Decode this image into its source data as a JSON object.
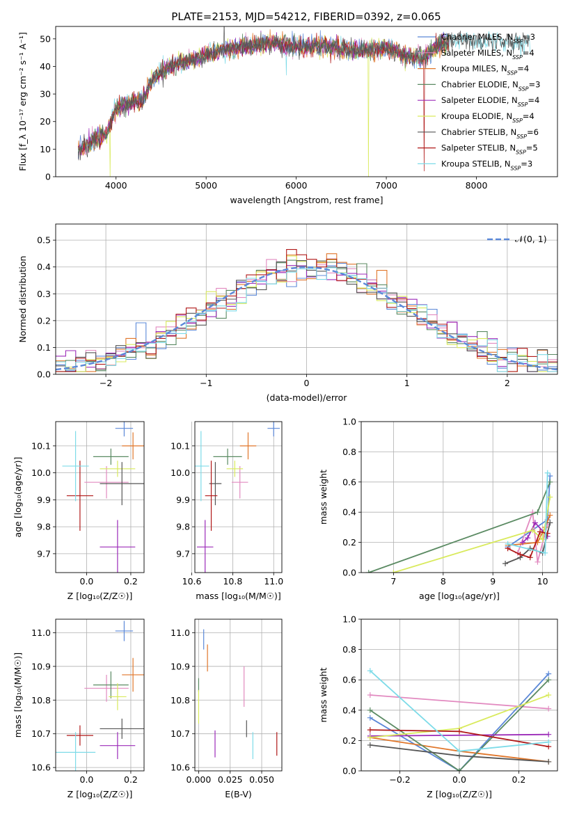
{
  "figure": {
    "title": "PLATE=2153, MJD=54212, FIBERID=0392, z=0.065"
  },
  "colors": {
    "Chabrier MILES": "#5b88d8",
    "Salpeter MILES": "#e28ac0",
    "Kroupa MILES": "#e0762a",
    "Chabrier ELODIE": "#5a8a62",
    "Salpeter ELODIE": "#9b2ab8",
    "Kroupa ELODIE": "#d9ea5c",
    "Chabrier STELIB": "#555555",
    "Salpeter STELIB": "#b01818",
    "Kroupa STELIB": "#7ddbe8",
    "normal": "#5b88d8"
  },
  "chart_data": [
    {
      "id": "spectrum",
      "type": "line",
      "xlabel": "wavelength [Angstrom, rest frame]",
      "ylabel": "Flux [f_λ 10⁻¹⁷ erg cm⁻² s⁻¹ A⁻¹]",
      "xlim": [
        3330,
        8900
      ],
      "ylim": [
        0,
        54.5
      ],
      "xticks": [
        4000,
        5000,
        6000,
        7000,
        8000
      ],
      "yticks": [
        0,
        10,
        20,
        30,
        40,
        50
      ],
      "grid": false,
      "legend": "right",
      "continuum": {
        "x": [
          3580,
          3700,
          3800,
          3900,
          4000,
          4100,
          4200,
          4300,
          4400,
          4500,
          4600,
          4800,
          5000,
          5200,
          5400,
          5600,
          5800,
          6000,
          6200,
          6400,
          6600,
          6800,
          7000,
          7200,
          7400,
          7600,
          7800,
          8000,
          8200,
          8400,
          8600
        ],
        "y": [
          10,
          12,
          14,
          16,
          25,
          26,
          27,
          28,
          35,
          38,
          40,
          42,
          44,
          46,
          47,
          48,
          48.5,
          47,
          47.5,
          47,
          46,
          46,
          47,
          44,
          43,
          48,
          50,
          49,
          49,
          49,
          49
        ]
      },
      "dips": [
        {
          "x": 3934,
          "depth": 18,
          "series": "Kroupa ELODIE"
        },
        {
          "x": 5890,
          "depth": 10,
          "series": "Kroupa STELIB"
        },
        {
          "x": 6800,
          "depth": 46,
          "series": "Kroupa ELODIE"
        },
        {
          "x": 7420,
          "depth": 43,
          "series": "Salpeter STELIB"
        }
      ],
      "spikes": [
        {
          "x": 5200,
          "height": 11
        }
      ],
      "series": [
        {
          "name": "Chabrier MILES",
          "n_ssp": "3"
        },
        {
          "name": "Salpeter MILES",
          "n_ssp": "4"
        },
        {
          "name": "Kroupa MILES",
          "n_ssp": "4"
        },
        {
          "name": "Chabrier ELODIE",
          "n_ssp": "3"
        },
        {
          "name": "Salpeter ELODIE",
          "n_ssp": "4"
        },
        {
          "name": "Kroupa ELODIE",
          "n_ssp": "4"
        },
        {
          "name": "Chabrier STELIB",
          "n_ssp": "6"
        },
        {
          "name": "Salpeter STELIB",
          "n_ssp": "5"
        },
        {
          "name": "Kroupa STELIB",
          "n_ssp": "3"
        }
      ]
    },
    {
      "id": "residuals",
      "type": "histogram",
      "xlabel": "(data-model)/error",
      "ylabel": "Normed distribution",
      "xlim": [
        -2.5,
        2.5
      ],
      "ylim": [
        0,
        0.56
      ],
      "xticks": [
        -2,
        -1,
        0,
        1,
        2
      ],
      "yticks": [
        0.0,
        0.1,
        0.2,
        0.3,
        0.4,
        0.5
      ],
      "grid": true,
      "legend": "top-right",
      "normal_label": "𝒩(0, 1)",
      "bin_width": 0.1
    },
    {
      "id": "z_age",
      "type": "errorbar",
      "xlabel": "Z [log₁₀(Z/Z☉)]",
      "ylabel": "age [log₁₀(age/yr)]",
      "xlim": [
        -0.14,
        0.26
      ],
      "ylim": [
        9.63,
        10.19
      ],
      "xticks": [
        0.0,
        0.2
      ],
      "yticks": [
        9.7,
        9.8,
        9.9,
        10.0,
        10.1
      ],
      "grid": true,
      "points": [
        {
          "series": "Chabrier MILES",
          "x": 0.17,
          "xerr": 0.04,
          "y": 10.165,
          "yerr": 0.03
        },
        {
          "series": "Salpeter MILES",
          "x": 0.09,
          "xerr": 0.1,
          "y": 9.965,
          "yerr": 0.06
        },
        {
          "series": "Kroupa MILES",
          "x": 0.21,
          "xerr": 0.05,
          "y": 10.1,
          "yerr": 0.05
        },
        {
          "series": "Chabrier ELODIE",
          "x": 0.11,
          "xerr": 0.08,
          "y": 10.06,
          "yerr": 0.03
        },
        {
          "series": "Salpeter ELODIE",
          "x": 0.14,
          "xerr": 0.08,
          "y": 9.725,
          "yerr": 0.1
        },
        {
          "series": "Kroupa ELODIE",
          "x": 0.14,
          "xerr": 0.08,
          "y": 10.015,
          "yerr": 0.03
        },
        {
          "series": "Chabrier STELIB",
          "x": 0.16,
          "xerr": 0.1,
          "y": 9.96,
          "yerr": 0.08
        },
        {
          "series": "Salpeter STELIB",
          "x": -0.03,
          "xerr": 0.06,
          "y": 9.915,
          "yerr": 0.13
        },
        {
          "series": "Kroupa STELIB",
          "x": -0.05,
          "xerr": 0.06,
          "y": 10.025,
          "yerr": 0.13
        }
      ]
    },
    {
      "id": "mass_age",
      "type": "errorbar",
      "xlabel": "mass [log₁₀(M/M☉)]",
      "ylabel": "",
      "xlim": [
        10.615,
        11.04
      ],
      "ylim": [
        9.63,
        10.19
      ],
      "xticks": [
        10.6,
        10.8,
        11.0
      ],
      "yticks": [
        9.7,
        9.8,
        9.9,
        10.0,
        10.1
      ],
      "grid": true,
      "points": [
        {
          "series": "Chabrier MILES",
          "x": 11.0,
          "xerr": 0.03,
          "y": 10.165,
          "yerr": 0.03
        },
        {
          "series": "Salpeter MILES",
          "x": 10.835,
          "xerr": 0.04,
          "y": 9.965,
          "yerr": 0.06
        },
        {
          "series": "Kroupa MILES",
          "x": 10.875,
          "xerr": 0.04,
          "y": 10.1,
          "yerr": 0.05
        },
        {
          "series": "Chabrier ELODIE",
          "x": 10.775,
          "xerr": 0.07,
          "y": 10.06,
          "yerr": 0.03
        },
        {
          "series": "Salpeter ELODIE",
          "x": 10.665,
          "xerr": 0.04,
          "y": 9.725,
          "yerr": 0.1
        },
        {
          "series": "Kroupa ELODIE",
          "x": 10.81,
          "xerr": 0.04,
          "y": 10.015,
          "yerr": 0.03
        },
        {
          "series": "Chabrier STELIB",
          "x": 10.715,
          "xerr": 0.03,
          "y": 9.96,
          "yerr": 0.08
        },
        {
          "series": "Salpeter STELIB",
          "x": 10.695,
          "xerr": 0.03,
          "y": 9.915,
          "yerr": 0.13
        },
        {
          "series": "Kroupa STELIB",
          "x": 10.645,
          "xerr": 0.04,
          "y": 10.025,
          "yerr": 0.13
        }
      ]
    },
    {
      "id": "age_weight",
      "type": "line",
      "xlabel": "age [log₁₀(age/yr)]",
      "ylabel": "mass weight",
      "xlim": [
        6.35,
        10.3
      ],
      "ylim": [
        0,
        1.0
      ],
      "xticks": [
        7,
        8,
        9,
        10
      ],
      "yticks": [
        0.0,
        0.2,
        0.4,
        0.6,
        0.8,
        1.0
      ],
      "grid": true,
      "series": [
        {
          "name": "Chabrier MILES",
          "x": [
            9.3,
            10.1,
            10.15
          ],
          "y": [
            0.17,
            0.35,
            0.64
          ]
        },
        {
          "name": "Salpeter MILES",
          "x": [
            9.5,
            9.8,
            9.9,
            10.1
          ],
          "y": [
            0.13,
            0.4,
            0.07,
            0.32
          ]
        },
        {
          "name": "Kroupa MILES",
          "x": [
            9.3,
            9.9,
            10.05,
            10.15
          ],
          "y": [
            0.18,
            0.2,
            0.3,
            0.38
          ]
        },
        {
          "name": "Chabrier ELODIE",
          "x": [
            6.5,
            9.9,
            10.15
          ],
          "y": [
            0.0,
            0.4,
            0.6
          ]
        },
        {
          "name": "Salpeter ELODIE",
          "x": [
            9.6,
            9.7,
            9.85,
            10.1
          ],
          "y": [
            0.2,
            0.23,
            0.33,
            0.24
          ]
        },
        {
          "name": "Kroupa ELODIE",
          "x": [
            7.0,
            9.8,
            10.0,
            10.15
          ],
          "y": [
            0.0,
            0.28,
            0.22,
            0.5
          ]
        },
        {
          "name": "Chabrier STELIB",
          "x": [
            9.25,
            9.55,
            9.75,
            10.0,
            10.15
          ],
          "y": [
            0.06,
            0.1,
            0.16,
            0.13,
            0.33
          ]
        },
        {
          "name": "Salpeter STELIB",
          "x": [
            9.3,
            9.55,
            9.75,
            9.95,
            10.1
          ],
          "y": [
            0.16,
            0.12,
            0.1,
            0.27,
            0.26
          ]
        },
        {
          "name": "Kroupa STELIB",
          "x": [
            9.3,
            10.05,
            10.1
          ],
          "y": [
            0.19,
            0.13,
            0.66
          ]
        }
      ]
    },
    {
      "id": "z_mass",
      "type": "errorbar",
      "xlabel": "Z [log₁₀(Z/Z☉)]",
      "ylabel": "mass [log₁₀(M/M☉)]",
      "xlim": [
        -0.14,
        0.26
      ],
      "ylim": [
        10.59,
        11.04
      ],
      "xticks": [
        0.0,
        0.2
      ],
      "yticks": [
        10.6,
        10.7,
        10.8,
        10.9,
        11.0
      ],
      "grid": true,
      "points": [
        {
          "series": "Chabrier MILES",
          "x": 0.17,
          "xerr": 0.04,
          "y": 11.005,
          "yerr": 0.03
        },
        {
          "series": "Salpeter MILES",
          "x": 0.09,
          "xerr": 0.1,
          "y": 10.835,
          "yerr": 0.04
        },
        {
          "series": "Kroupa MILES",
          "x": 0.21,
          "xerr": 0.05,
          "y": 10.875,
          "yerr": 0.05
        },
        {
          "series": "Chabrier ELODIE",
          "x": 0.11,
          "xerr": 0.08,
          "y": 10.845,
          "yerr": 0.04
        },
        {
          "series": "Salpeter ELODIE",
          "x": 0.14,
          "xerr": 0.08,
          "y": 10.665,
          "yerr": 0.04
        },
        {
          "series": "Kroupa ELODIE",
          "x": 0.14,
          "xerr": 0.04,
          "y": 10.81,
          "yerr": 0.04
        },
        {
          "series": "Chabrier STELIB",
          "x": 0.16,
          "xerr": 0.1,
          "y": 10.715,
          "yerr": 0.03
        },
        {
          "series": "Salpeter STELIB",
          "x": -0.03,
          "xerr": 0.06,
          "y": 10.695,
          "yerr": 0.03
        },
        {
          "series": "Kroupa STELIB",
          "x": -0.05,
          "xerr": 0.09,
          "y": 10.645,
          "yerr": 0.06
        }
      ]
    },
    {
      "id": "ebv_mass",
      "type": "errorbar",
      "xlabel": "E(B-V)",
      "ylabel": "",
      "xlim": [
        -0.003,
        0.066
      ],
      "ylim": [
        10.59,
        11.04
      ],
      "xticks": [
        0.0,
        0.025,
        0.05
      ],
      "yticks": [
        10.6,
        10.7,
        10.8,
        10.9,
        11.0
      ],
      "grid": true,
      "points": [
        {
          "series": "Chabrier MILES",
          "x": 0.004,
          "y": 10.98,
          "yerr": 0.03
        },
        {
          "series": "Salpeter MILES",
          "x": 0.036,
          "y": 10.84,
          "yerr": 0.06
        },
        {
          "series": "Kroupa MILES",
          "x": 0.007,
          "y": 10.925,
          "yerr": 0.04
        },
        {
          "series": "Chabrier ELODIE",
          "x": 0.0,
          "y": 10.845,
          "yerr": 0.02
        },
        {
          "series": "Salpeter ELODIE",
          "x": 0.013,
          "y": 10.67,
          "yerr": 0.04
        },
        {
          "series": "Kroupa ELODIE",
          "x": 0.0,
          "y": 10.78,
          "yerr": 0.05
        },
        {
          "series": "Chabrier STELIB",
          "x": 0.038,
          "y": 10.715,
          "yerr": 0.025
        },
        {
          "series": "Salpeter STELIB",
          "x": 0.062,
          "y": 10.67,
          "yerr": 0.035
        },
        {
          "series": "Kroupa STELIB",
          "x": 0.043,
          "y": 10.665,
          "yerr": 0.04
        }
      ]
    },
    {
      "id": "z_weight",
      "type": "line",
      "xlabel": "Z [log₁₀(Z/Z☉)]",
      "ylabel": "mass weight",
      "xlim": [
        -0.33,
        0.33
      ],
      "ylim": [
        0,
        1.0
      ],
      "xticks": [
        -0.2,
        0.0,
        0.2
      ],
      "yticks": [
        0.0,
        0.2,
        0.4,
        0.6,
        0.8,
        1.0
      ],
      "grid": true,
      "series": [
        {
          "name": "Chabrier MILES",
          "x": [
            -0.3,
            0.0,
            0.3
          ],
          "y": [
            0.35,
            0.0,
            0.64
          ]
        },
        {
          "name": "Salpeter MILES",
          "x": [
            -0.3,
            0.3
          ],
          "y": [
            0.5,
            0.41
          ]
        },
        {
          "name": "Kroupa MILES",
          "x": [
            -0.3,
            0.0,
            0.3
          ],
          "y": [
            0.22,
            0.13,
            0.06
          ]
        },
        {
          "name": "Chabrier ELODIE",
          "x": [
            -0.3,
            0.0,
            0.3
          ],
          "y": [
            0.4,
            0.0,
            0.6
          ]
        },
        {
          "name": "Salpeter ELODIE",
          "x": [
            -0.3,
            0.3
          ],
          "y": [
            0.23,
            0.24
          ]
        },
        {
          "name": "Kroupa ELODIE",
          "x": [
            -0.3,
            0.0,
            0.3
          ],
          "y": [
            0.22,
            0.28,
            0.5
          ]
        },
        {
          "name": "Chabrier STELIB",
          "x": [
            -0.3,
            0.0,
            0.3
          ],
          "y": [
            0.17,
            0.1,
            0.06
          ]
        },
        {
          "name": "Salpeter STELIB",
          "x": [
            -0.3,
            0.0,
            0.3
          ],
          "y": [
            0.27,
            0.26,
            0.16
          ]
        },
        {
          "name": "Kroupa STELIB",
          "x": [
            -0.3,
            0.0,
            0.3
          ],
          "y": [
            0.66,
            0.13,
            0.19
          ]
        }
      ]
    }
  ]
}
